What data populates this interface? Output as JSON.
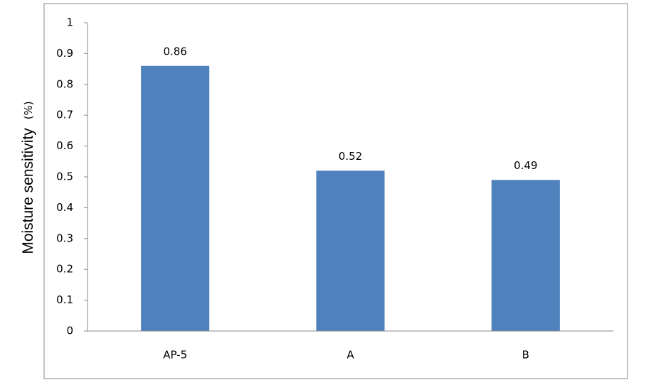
{
  "chart_data": {
    "type": "bar",
    "categories": [
      "AP-5",
      "A",
      "B"
    ],
    "values": [
      0.86,
      0.52,
      0.49
    ],
    "color": "#4f81bd",
    "ylabel": "Moisture sensitivity",
    "ylabel_unit": "(%)",
    "ylim": [
      0,
      1
    ],
    "yticks": [
      0,
      0.1,
      0.2,
      0.3,
      0.4,
      0.5,
      0.6,
      0.7,
      0.8,
      0.9,
      1
    ],
    "grid": false
  }
}
